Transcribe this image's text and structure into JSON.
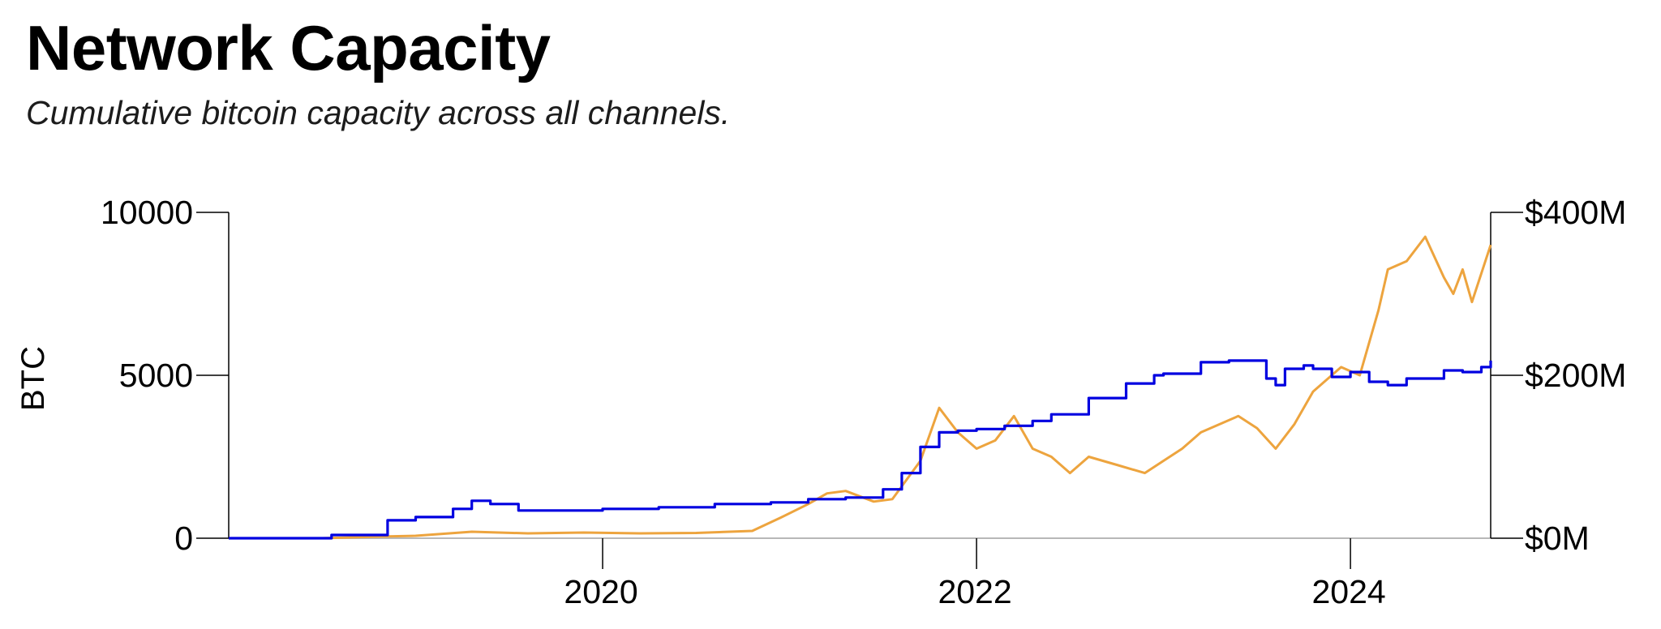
{
  "header": {
    "title": "Network Capacity",
    "subtitle": "Cumulative bitcoin capacity across all channels."
  },
  "chart_data": {
    "type": "line",
    "title": "Network Capacity",
    "subtitle": "Cumulative bitcoin capacity across all channels.",
    "ylabel": "BTC",
    "ylabel_right": "",
    "xlim": [
      2018.0,
      2024.75
    ],
    "ylim": [
      0,
      10000
    ],
    "ylim_right": [
      0,
      400000000
    ],
    "x_ticks": [
      2020,
      2022,
      2024
    ],
    "x_tick_labels": [
      "2020",
      "2022",
      "2024"
    ],
    "y_ticks": [
      0,
      5000,
      10000
    ],
    "y_tick_labels": [
      "0",
      "5000",
      "10000"
    ],
    "y_ticks_right": [
      0,
      200000000,
      400000000
    ],
    "y_tick_labels_right": [
      "$0M",
      "$200M",
      "$400M"
    ],
    "grid": false,
    "legend": "none",
    "colors": {
      "btc": "#0000e0",
      "usd": "#eda43e",
      "axis": "#000000",
      "baseline": "#b8b8b8"
    },
    "series": [
      {
        "axis": "left",
        "color": "#0000e0",
        "x": [
          2018.0,
          2018.45,
          2018.55,
          2018.8,
          2018.85,
          2019.0,
          2019.2,
          2019.3,
          2019.4,
          2019.55,
          2019.8,
          2020.0,
          2020.3,
          2020.6,
          2020.9,
          2021.1,
          2021.3,
          2021.5,
          2021.6,
          2021.7,
          2021.8,
          2021.9,
          2022.0,
          2022.15,
          2022.3,
          2022.4,
          2022.6,
          2022.8,
          2022.95,
          2023.0,
          2023.2,
          2023.35,
          2023.5,
          2023.55,
          2023.6,
          2023.65,
          2023.75,
          2023.8,
          2023.9,
          2024.0,
          2024.1,
          2024.2,
          2024.3,
          2024.5,
          2024.6,
          2024.7,
          2024.75
        ],
        "y": [
          0,
          0,
          100,
          100,
          550,
          650,
          900,
          1150,
          1050,
          850,
          850,
          900,
          950,
          1050,
          1100,
          1200,
          1250,
          1500,
          2000,
          2800,
          3250,
          3300,
          3350,
          3450,
          3600,
          3800,
          4300,
          4750,
          5000,
          5050,
          5400,
          5450,
          5450,
          4900,
          4700,
          5200,
          5300,
          5200,
          4950,
          5100,
          4800,
          4700,
          4900,
          5150,
          5100,
          5250,
          5450
        ]
      },
      {
        "axis": "right",
        "color": "#eda43e",
        "x": [
          2018.0,
          2018.5,
          2018.8,
          2019.0,
          2019.3,
          2019.6,
          2019.9,
          2020.2,
          2020.5,
          2020.8,
          2020.95,
          2021.1,
          2021.2,
          2021.3,
          2021.45,
          2021.55,
          2021.7,
          2021.8,
          2021.9,
          2022.0,
          2022.1,
          2022.2,
          2022.3,
          2022.4,
          2022.5,
          2022.6,
          2022.75,
          2022.9,
          2023.0,
          2023.1,
          2023.2,
          2023.4,
          2023.5,
          2023.6,
          2023.7,
          2023.8,
          2023.95,
          2024.05,
          2024.15,
          2024.2,
          2024.3,
          2024.4,
          2024.5,
          2024.55,
          2024.6,
          2024.65,
          2024.75
        ],
        "y": [
          0,
          0,
          2000000,
          3000000,
          8000000,
          6000000,
          7000000,
          6000000,
          6500000,
          9000000,
          25000000,
          42000000,
          55000000,
          58000000,
          45000000,
          48000000,
          95000000,
          160000000,
          130000000,
          110000000,
          120000000,
          150000000,
          110000000,
          100000000,
          80000000,
          100000000,
          90000000,
          80000000,
          95000000,
          110000000,
          130000000,
          150000000,
          135000000,
          110000000,
          140000000,
          180000000,
          210000000,
          200000000,
          280000000,
          330000000,
          340000000,
          370000000,
          320000000,
          300000000,
          330000000,
          290000000,
          360000000
        ]
      }
    ]
  }
}
